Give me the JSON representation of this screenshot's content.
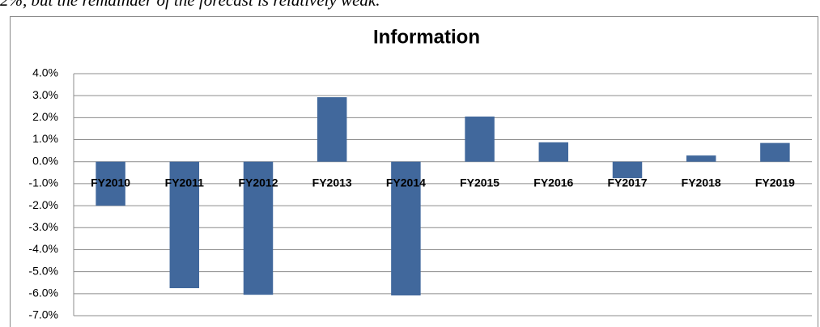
{
  "text_above": "2%, but the remainder of the forecast is relatively weak.",
  "chart_data": {
    "type": "bar",
    "title": "Information",
    "categories": [
      "FY2010",
      "FY2011",
      "FY2012",
      "FY2013",
      "FY2014",
      "FY2015",
      "FY2016",
      "FY2017",
      "FY2018",
      "FY2019"
    ],
    "values": [
      -2.0,
      -5.75,
      -6.05,
      2.93,
      -6.08,
      2.05,
      0.88,
      -0.75,
      0.28,
      0.85
    ],
    "color": "#41689c",
    "ylim": [
      -7,
      4
    ],
    "yticks": [
      {
        "value": -7,
        "label": "-7.0%"
      },
      {
        "value": -6,
        "label": "-6.0%"
      },
      {
        "value": -5,
        "label": "-5.0%"
      },
      {
        "value": -4,
        "label": "-4.0%"
      },
      {
        "value": -3,
        "label": "-3.0%"
      },
      {
        "value": -2,
        "label": "-2.0%"
      },
      {
        "value": -1,
        "label": "-1.0%"
      },
      {
        "value": 0,
        "label": "0.0%"
      },
      {
        "value": 1,
        "label": "1.0%"
      },
      {
        "value": 2,
        "label": "2.0%"
      },
      {
        "value": 3,
        "label": "3.0%"
      },
      {
        "value": 4,
        "label": "4.0%"
      }
    ],
    "grid": true
  }
}
